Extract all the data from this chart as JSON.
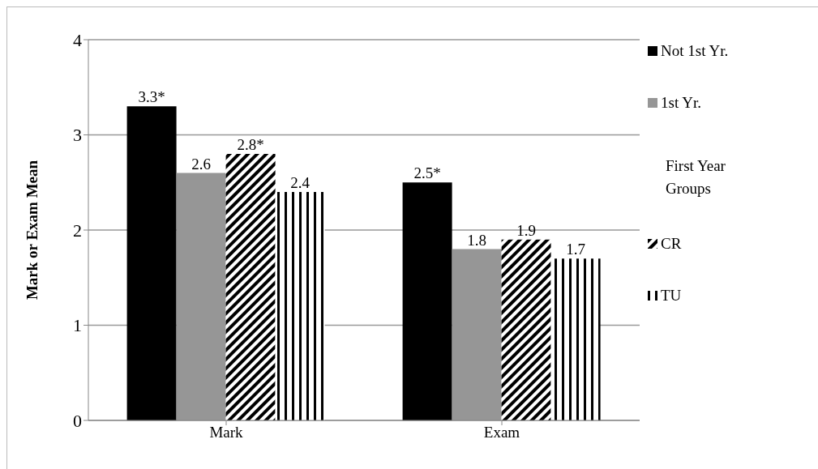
{
  "chart_data": {
    "type": "bar",
    "categories": [
      "Mark",
      "Exam"
    ],
    "ylabel": "Mark or Exam Mean",
    "ylim": [
      0,
      4
    ],
    "yticks": [
      0,
      1,
      2,
      3,
      4
    ],
    "grid": "y",
    "legend": "right",
    "legend_title": "First Year Groups",
    "series": [
      {
        "name": "Not 1st Yr.",
        "color": "#000000",
        "values": [
          3.3,
          2.5
        ],
        "value_labels": [
          "3.3*",
          "2.5*"
        ]
      },
      {
        "name": "1st Yr.",
        "color": "#969696",
        "values": [
          2.6,
          1.8
        ],
        "value_labels": [
          "2.6",
          "1.8"
        ]
      },
      {
        "name": "CR",
        "color": "#000000",
        "values": [
          2.8,
          1.9
        ],
        "value_labels": [
          "2.8*",
          "1.9"
        ]
      },
      {
        "name": "TU",
        "color": "#000000",
        "values": [
          2.4,
          1.7
        ],
        "value_labels": [
          "2.4",
          "1.7"
        ]
      }
    ]
  }
}
